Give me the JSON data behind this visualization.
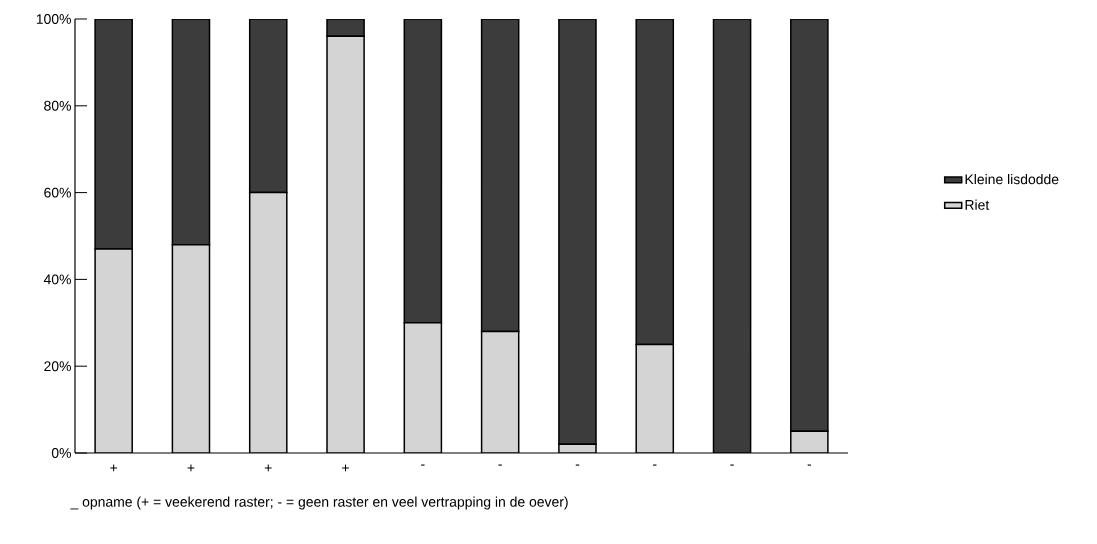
{
  "chart_data": {
    "type": "bar",
    "stacked": true,
    "categories": [
      "+",
      "+",
      "+",
      "+",
      "-",
      "-",
      "-",
      "-",
      "-",
      "-"
    ],
    "series": [
      {
        "name": "Riet",
        "color": "#d4d4d4",
        "values": [
          47,
          48,
          60,
          96,
          30,
          28,
          2,
          25,
          0,
          5
        ]
      },
      {
        "name": "Kleine lisdodde",
        "color": "#3c3c3c",
        "values": [
          53,
          52,
          40,
          4,
          70,
          72,
          98,
          75,
          100,
          95
        ]
      }
    ],
    "xlabel": "_   opname   (+ = veekerend raster;  - = geen raster en veel vertrapping in de oever)",
    "ylim": [
      0,
      100
    ],
    "yticks": [
      {
        "value": 0,
        "label": "0%"
      },
      {
        "value": 20,
        "label": "20%"
      },
      {
        "value": 40,
        "label": "40%"
      },
      {
        "value": 60,
        "label": "60%"
      },
      {
        "value": 80,
        "label": "80%"
      },
      {
        "value": 100,
        "label": "100%"
      }
    ],
    "legend": "right",
    "grid": false
  }
}
